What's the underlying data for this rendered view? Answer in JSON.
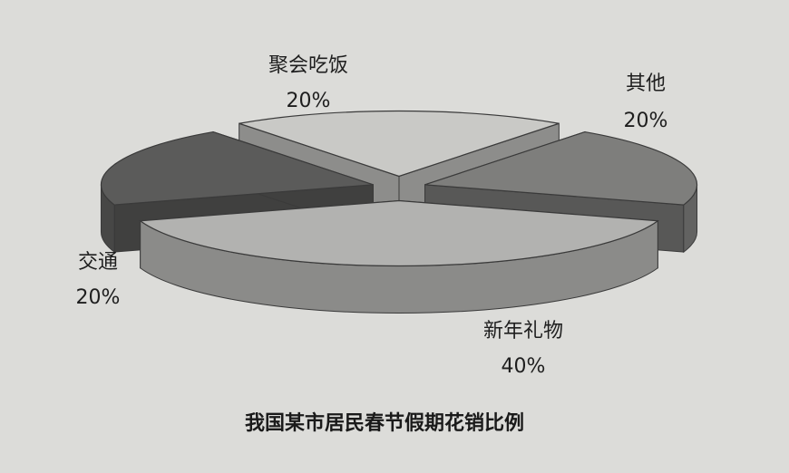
{
  "chart_data": {
    "type": "pie",
    "style": "3d-exploded",
    "title": "我国某市居民春节假期花销比例",
    "slices": [
      {
        "label": "新年礼物",
        "value": 40,
        "value_label": "40%",
        "color": "#b2b2b0"
      },
      {
        "label": "其他",
        "value": 20,
        "value_label": "20%",
        "color": "#5b5b5a"
      },
      {
        "label": "聚会吃饭",
        "value": 20,
        "value_label": "20%",
        "color": "#c9c9c6"
      },
      {
        "label": "交通",
        "value": 20,
        "value_label": "20%",
        "color": "#7e7e7c"
      }
    ]
  }
}
